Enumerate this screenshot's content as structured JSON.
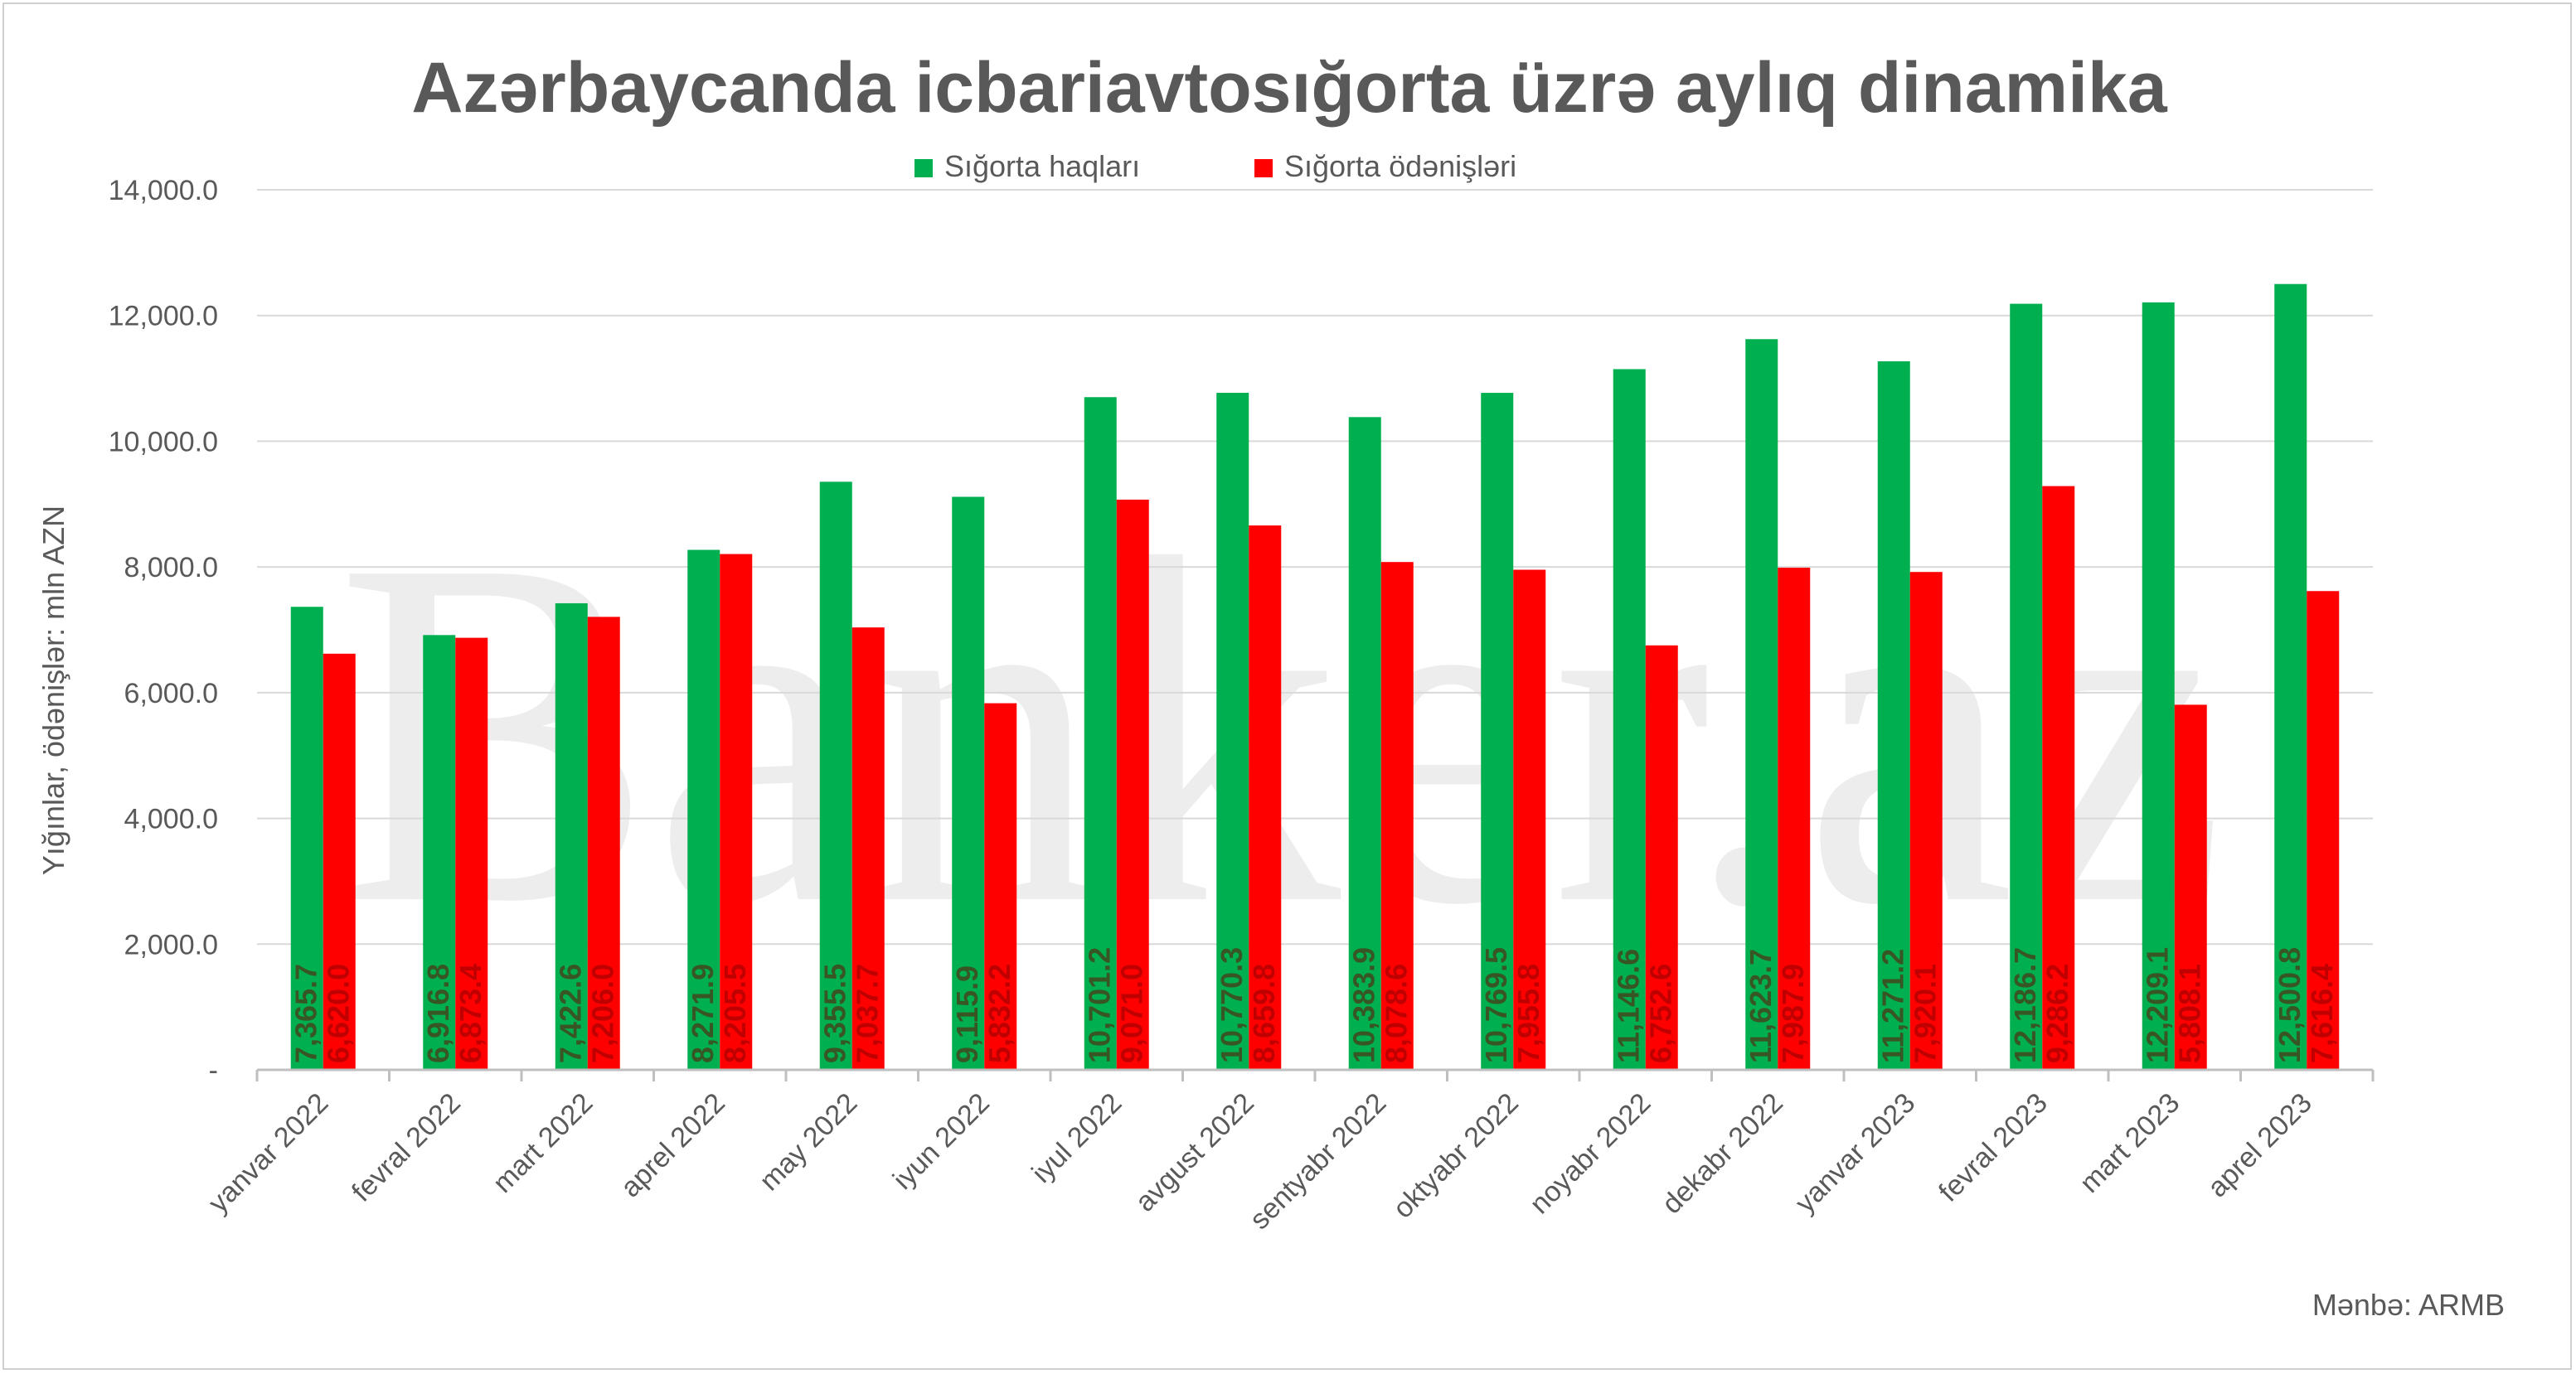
{
  "chart_data": {
    "type": "bar",
    "title": "Azərbaycanda icbariavtosığorta üzrə aylıq dinamika",
    "ylabel": "Yığınlar, ödənişlər: mln AZN",
    "xlabel": "",
    "ylim": [
      0,
      14000
    ],
    "yticks": [
      0,
      2000,
      4000,
      6000,
      8000,
      10000,
      12000,
      14000
    ],
    "ytick_labels": [
      "-",
      "2,000.0",
      "4,000.0",
      "6,000.0",
      "8,000.0",
      "10,000.0",
      "12,000.0",
      "14,000.0"
    ],
    "grid": true,
    "legend": "top-center",
    "categories": [
      "yanvar 2022",
      "fevral 2022",
      "mart 2022",
      "aprel 2022",
      "may 2022",
      "iyun 2022",
      "iyul 2022",
      "avgust 2022",
      "sentyabr 2022",
      "oktyabr 2022",
      "noyabr 2022",
      "dekabr 2022",
      "yanvar 2023",
      "fevral 2023",
      "mart 2023",
      "aprel 2023"
    ],
    "series": [
      {
        "name": "Sığorta haqları",
        "color": "#00b050",
        "label_color": "#375623",
        "values": [
          7365.7,
          6916.8,
          7422.6,
          8271.9,
          9355.5,
          9115.9,
          10701.2,
          10770.3,
          10383.9,
          10769.5,
          11146.6,
          11623.7,
          11271.2,
          12186.7,
          12209.1,
          12500.8
        ],
        "labels": [
          "7,365.7",
          "6,916.8",
          "7,422.6",
          "8,271.9",
          "9,355.5",
          "9,115.9",
          "10,701.2",
          "10,770.3",
          "10,383.9",
          "10,769.5",
          "11,146.6",
          "11,623.7",
          "11,271.2",
          "12,186.7",
          "12,209.1",
          "12,500.8"
        ]
      },
      {
        "name": "Sığorta ödənişləri",
        "color": "#ff0000",
        "label_color": "#c00000",
        "values": [
          6620.0,
          6873.4,
          7206.0,
          8205.5,
          7037.7,
          5832.2,
          9071.0,
          8659.8,
          8078.6,
          7955.8,
          6752.6,
          7987.9,
          7920.1,
          9286.2,
          5808.1,
          7616.4
        ],
        "labels": [
          "6,620.0",
          "6,873.4",
          "7,206.0",
          "8,205.5",
          "7,037.7",
          "5,832.2",
          "9,071.0",
          "8,659.8",
          "8,078.6",
          "7,955.8",
          "6,752.6",
          "7,987.9",
          "7,920.1",
          "9,286.2",
          "5,808.1",
          "7,616.4"
        ]
      }
    ]
  },
  "source": "Mənbə: ARMB",
  "watermark": "Banker.az",
  "colors": {
    "text": "#595959",
    "grid": "#d9d9d9",
    "axis": "#bfbfbf"
  }
}
